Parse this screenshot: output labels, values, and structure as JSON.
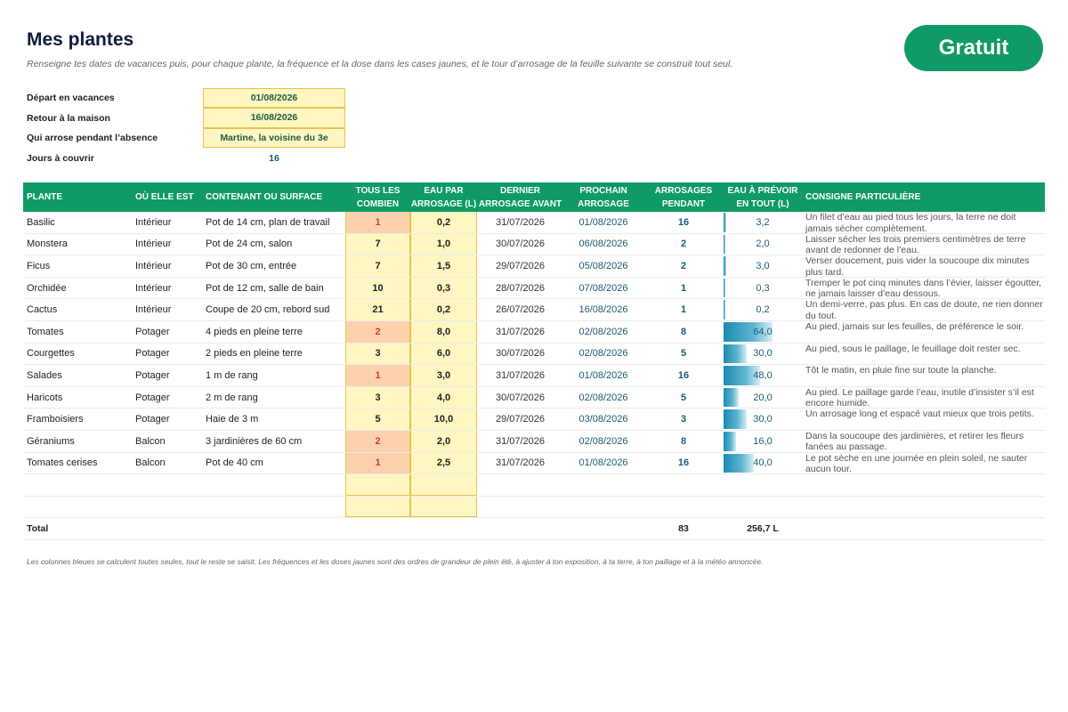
{
  "header": {
    "title": "Mes plantes",
    "subtitle": "Renseigne tes dates de vacances puis, pour chaque plante, la fréquence et la dose dans les cases jaunes, et le tour d’arrosage de la feuille suivante se construit tout seul.",
    "badge": "Gratuit"
  },
  "info": [
    {
      "label": "Départ en vacances",
      "value": "01/08/2026"
    },
    {
      "label": "Retour à la maison",
      "value": "16/08/2026"
    },
    {
      "label": "Qui arrose pendant l’absence",
      "value": "Martine, la voisine du 3e"
    },
    {
      "label": "Jours à couvrir",
      "value": "16"
    }
  ],
  "table": {
    "headers": {
      "plante": "PLANTE",
      "ou": "OÙ ELLE EST",
      "contenant": "CONTENANT OU SURFACE",
      "tous_les": "TOUS LES",
      "combien": "COMBIEN",
      "eau_par": "EAU PAR",
      "arrosage_l": "ARROSAGE (L)",
      "dernier": "DERNIER",
      "arrosage_avant": "ARROSAGE AVANT",
      "prochain": "PROCHAIN",
      "arrosage": "ARROSAGE",
      "arrosages": "ARROSAGES",
      "pendant": "PENDANT",
      "eau_prevoir": "EAU À PRÉVOIR",
      "en_tout": "EN TOUT (L)",
      "consigne": "CONSIGNE PARTICULIÈRE"
    },
    "rows": [
      {
        "plante": "Basilic",
        "ou": "Intérieur",
        "contenant": "Pot de 14 cm, plan de travail",
        "freq": "1",
        "dose": "0,2",
        "dernier": "31/07/2026",
        "prochain": "01/08/2026",
        "arrosages": "16",
        "total": "3,2",
        "level": 0.05,
        "note": "Un filet d’eau au pied tous les jours, la terre ne doit jamais sécher complètement."
      },
      {
        "plante": "Monstera",
        "ou": "Intérieur",
        "contenant": "Pot de 24 cm, salon",
        "freq": "7",
        "dose": "1,0",
        "dernier": "30/07/2026",
        "prochain": "06/08/2026",
        "arrosages": "2",
        "total": "2,0",
        "level": 0.031,
        "note": "Laisser sécher les trois premiers centimètres de terre avant de redonner de l’eau."
      },
      {
        "plante": "Ficus",
        "ou": "Intérieur",
        "contenant": "Pot de 30 cm, entrée",
        "freq": "7",
        "dose": "1,5",
        "dernier": "29/07/2026",
        "prochain": "05/08/2026",
        "arrosages": "2",
        "total": "3,0",
        "level": 0.047,
        "note": "Verser doucement, puis vider la soucoupe dix minutes plus tard."
      },
      {
        "plante": "Orchidée",
        "ou": "Intérieur",
        "contenant": "Pot de 12 cm, salle de bain",
        "freq": "10",
        "dose": "0,3",
        "dernier": "28/07/2026",
        "prochain": "07/08/2026",
        "arrosages": "1",
        "total": "0,3",
        "level": 0.005,
        "note": "Tremper le pot cinq minutes dans l’évier, laisser égoutter, ne jamais laisser d’eau dessous."
      },
      {
        "plante": "Cactus",
        "ou": "Intérieur",
        "contenant": "Coupe de 20 cm, rebord sud",
        "freq": "21",
        "dose": "0,2",
        "dernier": "26/07/2026",
        "prochain": "16/08/2026",
        "arrosages": "1",
        "total": "0,2",
        "level": 0.003,
        "note": "Un demi-verre, pas plus. En cas de doute, ne rien donner du tout."
      },
      {
        "plante": "Tomates",
        "ou": "Potager",
        "contenant": "4 pieds en pleine terre",
        "freq": "2",
        "dose": "8,0",
        "dernier": "31/07/2026",
        "prochain": "02/08/2026",
        "arrosages": "8",
        "total": "64,0",
        "level": 1.0,
        "note": "Au pied, jamais sur les feuilles, de préférence le soir."
      },
      {
        "plante": "Courgettes",
        "ou": "Potager",
        "contenant": "2 pieds en pleine terre",
        "freq": "3",
        "dose": "6,0",
        "dernier": "30/07/2026",
        "prochain": "02/08/2026",
        "arrosages": "5",
        "total": "30,0",
        "level": 0.469,
        "note": "Au pied, sous le paillage, le feuillage doit rester sec."
      },
      {
        "plante": "Salades",
        "ou": "Potager",
        "contenant": "1 m de rang",
        "freq": "1",
        "dose": "3,0",
        "dernier": "31/07/2026",
        "prochain": "01/08/2026",
        "arrosages": "16",
        "total": "48,0",
        "level": 0.75,
        "note": "Tôt le matin, en pluie fine sur toute la planche."
      },
      {
        "plante": "Haricots",
        "ou": "Potager",
        "contenant": "2 m de rang",
        "freq": "3",
        "dose": "4,0",
        "dernier": "30/07/2026",
        "prochain": "02/08/2026",
        "arrosages": "5",
        "total": "20,0",
        "level": 0.3125,
        "note": "Au pied. Le paillage garde l’eau, inutile d’insister s’il est encore humide."
      },
      {
        "plante": "Framboisiers",
        "ou": "Potager",
        "contenant": "Haie de 3 m",
        "freq": "5",
        "dose": "10,0",
        "dernier": "29/07/2026",
        "prochain": "03/08/2026",
        "arrosages": "3",
        "total": "30,0",
        "level": 0.469,
        "note": "Un arrosage long et espacé vaut mieux que trois petits."
      },
      {
        "plante": "Géraniums",
        "ou": "Balcon",
        "contenant": "3 jardinières de 60 cm",
        "freq": "2",
        "dose": "2,0",
        "dernier": "31/07/2026",
        "prochain": "02/08/2026",
        "arrosages": "8",
        "total": "16,0",
        "level": 0.25,
        "note": "Dans la soucoupe des jardinières, et retirer les fleurs fanées au passage."
      },
      {
        "plante": "Tomates cerises",
        "ou": "Balcon",
        "contenant": "Pot de 40 cm",
        "freq": "1",
        "dose": "2,5",
        "dernier": "31/07/2026",
        "prochain": "01/08/2026",
        "arrosages": "16",
        "total": "40,0",
        "level": 0.625,
        "note": "Le pot sèche en une journée en plein soleil, ne sauter aucun tour."
      }
    ],
    "total": {
      "label": "Total",
      "arrosages": "83",
      "eau": "256,7 L"
    }
  },
  "footer": "Les colonnes bleues se calculent toutes seules, tout le reste se saisit. Les fréquences et les doses jaunes sont des ordres de grandeur de plein été, à ajuster à ton exposition, à ta terre, à ton paillage et à la météo annoncée.",
  "colors": {
    "accent": "#0f9a66",
    "yellow": "#fff6c2",
    "orange": "#fcd2ae",
    "blue": "#1a5a7a"
  }
}
